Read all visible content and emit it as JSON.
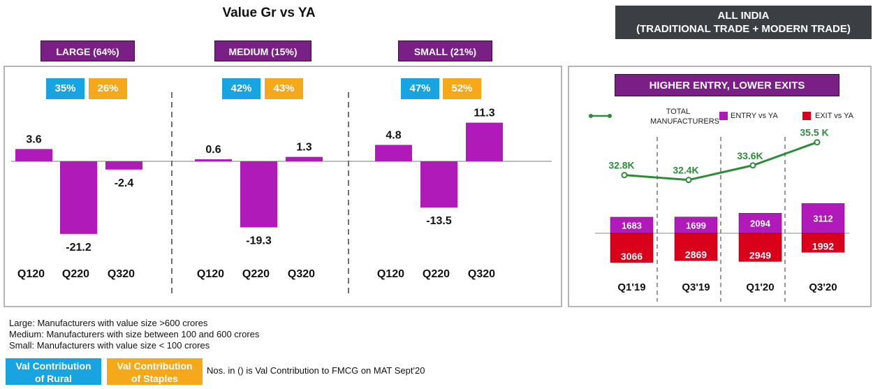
{
  "header": {
    "title": "Value Gr vs YA",
    "region_line1": "ALL INDIA",
    "region_line2": "(TRADITIONAL TRADE + MODERN TRADE)"
  },
  "segments": [
    {
      "label": "LARGE (64%)",
      "rural": "35%",
      "staples": "26%"
    },
    {
      "label": "MEDIUM (15%)",
      "rural": "42%",
      "staples": "43%"
    },
    {
      "label": "SMALL (21%)",
      "rural": "47%",
      "staples": "52%"
    }
  ],
  "right_panel": {
    "title": "HIGHER ENTRY, LOWER EXITS",
    "legend_line": "TOTAL",
    "legend_line2": "MANUFACTURERS",
    "legend_entry": "ENTRY vs YA",
    "legend_exit": "EXIT vs YA"
  },
  "chart_data": [
    {
      "type": "bar",
      "name": "LARGE (64%)",
      "categories": [
        "Q120",
        "Q220",
        "Q320"
      ],
      "values": [
        3.6,
        -21.2,
        -2.4
      ],
      "labels": [
        "3.6",
        "-21.2",
        "-2.4"
      ]
    },
    {
      "type": "bar",
      "name": "MEDIUM (15%)",
      "categories": [
        "Q120",
        "Q220",
        "Q320"
      ],
      "values": [
        0.6,
        -19.3,
        1.3
      ],
      "labels": [
        "0.6",
        "-19.3",
        "1.3"
      ]
    },
    {
      "type": "bar",
      "name": "SMALL (21%)",
      "categories": [
        "Q120",
        "Q220",
        "Q320"
      ],
      "values": [
        4.8,
        -13.5,
        11.3
      ],
      "labels": [
        "4.8",
        "-13.5",
        "11.3"
      ]
    },
    {
      "type": "bar+line",
      "categories": [
        "Q1'19",
        "Q3'19",
        "Q1'20",
        "Q3'20"
      ],
      "series": [
        {
          "name": "ENTRY vs YA",
          "values": [
            1683,
            1699,
            2094,
            3112
          ]
        },
        {
          "name": "EXIT vs YA",
          "values": [
            -3066,
            -2869,
            -2949,
            -1992
          ]
        },
        {
          "name": "TOTAL MANUFACTURERS",
          "values": [
            32.8,
            32.4,
            33.6,
            35.5
          ],
          "labels": [
            "32.8K",
            "32.4K",
            "33.6K",
            "35.5 K"
          ]
        }
      ]
    }
  ],
  "footnotes": {
    "large": "Large: Manufacturers with value size >600 crores",
    "medium": "Medium:  Manufacturers with size between 100 and 600 crores",
    "small": "Small:  Manufacturers with  value size < 100 crores",
    "rural_line1": "Val Contribution",
    "rural_line2": "of Rural",
    "staples_line1": "Val Contribution",
    "staples_line2": "of Staples",
    "note": "Nos. in () is Val Contribution to FMCG on MAT Sept'20"
  },
  "colors": {
    "purple": "#b01ab8",
    "dark_purple": "#7a1f86",
    "red": "#d9001b",
    "green": "#2e8b3a",
    "blue": "#18a4e0",
    "orange": "#f5a819"
  }
}
